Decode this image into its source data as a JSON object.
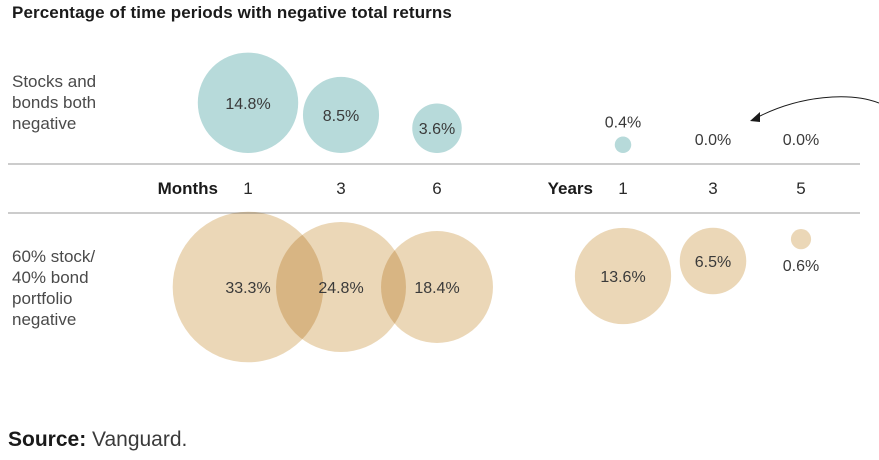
{
  "title": "Percentage of time periods with negative total returns",
  "chart_data": {
    "type": "bubble",
    "groups": [
      {
        "label": "Months",
        "periods": [
          "1",
          "3",
          "6"
        ]
      },
      {
        "label": "Years",
        "periods": [
          "1",
          "3",
          "5"
        ]
      }
    ],
    "series": [
      {
        "name": "Stocks and\nbonds both\nnegative",
        "color": "#b7dada",
        "values": [
          14.8,
          8.5,
          3.6,
          0.4,
          0.0,
          0.0
        ],
        "labels": [
          "14.8%",
          "8.5%",
          "3.6%",
          "0.4%",
          "0.0%",
          "0.0%"
        ]
      },
      {
        "name": "60% stock/\n40% bond\nportfolio\nnegative",
        "color": "#e3c79b",
        "values": [
          33.3,
          24.8,
          18.4,
          13.6,
          6.5,
          0.6
        ],
        "labels": [
          "33.3%",
          "24.8%",
          "18.4%",
          "13.6%",
          "6.5%",
          "0.6%"
        ]
      }
    ]
  },
  "source": {
    "prefix": "Source:",
    "text": " Vanguard."
  }
}
